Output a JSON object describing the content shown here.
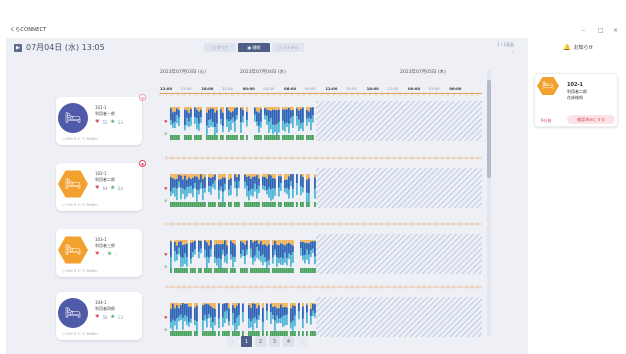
{
  "app": {
    "name": "くらCONNECT"
  },
  "window": {
    "minimize": "–",
    "maximize": "□",
    "close": "×"
  },
  "header": {
    "date": "07月04日 (水) 13:05",
    "segments": [
      "□ すべて",
      "▣ 睡眠",
      "□ バイタル"
    ],
    "active_segment": 1,
    "corner": "1 / 1画面"
  },
  "timeline": {
    "days": [
      "2023年07月03日 (火)",
      "2023年07月04日 (水)",
      "2023年07月05日 (木)"
    ],
    "times": [
      "12:00",
      "15:00",
      "18:00",
      "21:00",
      "00:00",
      "03:00",
      "06:00",
      "09:00",
      "12:00",
      "15:00",
      "18:00",
      "21:00",
      "00:00",
      "03:00",
      "06:00"
    ]
  },
  "patients": [
    {
      "room": "101-1",
      "name": "利用者一郎",
      "heart": "55",
      "resp": "13",
      "env": "○ 60% 6 ℃ ℃ 36dBm",
      "avatar": "purple",
      "alert": "faint"
    },
    {
      "room": "102-1",
      "name": "利用者二郎",
      "heart": "64",
      "resp": "24",
      "env": "○ 74% 6 ℃ ℃ 36dBm",
      "avatar": "orange",
      "alert": "strong"
    },
    {
      "room": "103-1",
      "name": "利用者三郎",
      "heart": "–",
      "resp": "–",
      "env": "○ 44% 6 ℃ ℃ 36dBm",
      "avatar": "orange",
      "alert": "none"
    },
    {
      "room": "104-1",
      "name": "利用者四郎",
      "heart": "56",
      "resp": "13",
      "env": "○ 55% 6 ℃ ℃ 36dBm",
      "avatar": "purple",
      "alert": "none"
    }
  ],
  "pagination": {
    "prev": "‹",
    "pages": [
      "1",
      "2",
      "3",
      "4"
    ],
    "active": 0,
    "next": "›"
  },
  "sidebar": {
    "title": "お知らせ",
    "notification": {
      "room": "102-1",
      "name": "利用者二郎",
      "type": "在床検知",
      "time": "9分前",
      "action": "確認済みにする"
    }
  },
  "colors": {
    "accent": "#4d5f85",
    "orange": "#f2a12e",
    "purple": "#4f5aa8",
    "alert": "#d64a5a",
    "sleep_deep": "#2f63b5",
    "sleep_light": "#55b6d8",
    "awake": "#f0b35a",
    "in_bed": "#49a35d"
  }
}
